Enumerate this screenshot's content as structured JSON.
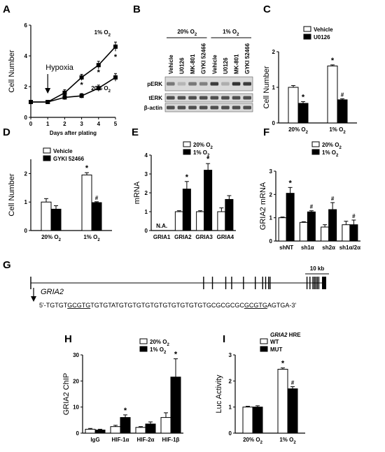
{
  "chart_data": [
    {
      "id": "A",
      "type": "line",
      "panel_label": "A",
      "xlabel": "Days after plating",
      "ylabel": "Cell Number",
      "xlim": [
        0,
        5
      ],
      "ylim": [
        0,
        6
      ],
      "xticks": [
        "0",
        "1",
        "2",
        "3",
        "4",
        "5"
      ],
      "yticks": [
        "0",
        "2",
        "4",
        "6"
      ],
      "annotation": "Hypoxia",
      "annotation_x": 1,
      "series": [
        {
          "name": "1% O2",
          "label_main": "1% O",
          "label_sub": "2",
          "x": [
            0,
            1,
            2,
            3,
            4,
            5
          ],
          "y": [
            1.0,
            1.0,
            1.6,
            2.6,
            3.4,
            4.6
          ],
          "err": [
            0.05,
            0.05,
            0.2,
            0.2,
            0.25,
            0.3
          ],
          "stars": [
            3,
            4,
            5
          ]
        },
        {
          "name": "20% O2",
          "label_main": "20% O",
          "label_sub": "2",
          "x": [
            0,
            1,
            2,
            3,
            4,
            5
          ],
          "y": [
            1.0,
            1.0,
            1.3,
            1.4,
            1.9,
            2.6
          ],
          "err": [
            0.05,
            0.05,
            0.15,
            0.15,
            0.2,
            0.25
          ],
          "stars": []
        }
      ]
    },
    {
      "id": "C",
      "type": "bar",
      "panel_label": "C",
      "ylabel": "Cell Number",
      "ylim": [
        0,
        2
      ],
      "yticks": [
        "0",
        "1",
        "2"
      ],
      "categories": [
        {
          "main": "20% O",
          "sub": "2"
        },
        {
          "main": "1% O",
          "sub": "2"
        }
      ],
      "series": [
        {
          "name": "Vehicle",
          "values": [
            1.0,
            1.6
          ],
          "err": [
            0.05,
            0.03
          ],
          "marks": [
            "",
            "*"
          ]
        },
        {
          "name": "U0126",
          "values": [
            0.55,
            0.65
          ],
          "err": [
            0.05,
            0.03
          ],
          "marks": [
            "*",
            "#"
          ]
        }
      ]
    },
    {
      "id": "D",
      "type": "bar",
      "panel_label": "D",
      "ylabel": "Cell Number",
      "ylim": [
        0,
        2.5
      ],
      "yticks": [
        "0",
        "1",
        "2"
      ],
      "categories": [
        {
          "main": "20% O",
          "sub": "2"
        },
        {
          "main": "1% O",
          "sub": "2"
        }
      ],
      "series": [
        {
          "name": "Vehicle",
          "values": [
            1.0,
            1.95
          ],
          "err": [
            0.12,
            0.08
          ],
          "marks": [
            "",
            "*"
          ]
        },
        {
          "name": "GYKI 52466",
          "values": [
            0.75,
            0.98
          ],
          "err": [
            0.12,
            0.03
          ],
          "marks": [
            "",
            "#"
          ]
        }
      ]
    },
    {
      "id": "E",
      "type": "bar",
      "panel_label": "E",
      "ylabel": "mRNA",
      "ylim": [
        0,
        4
      ],
      "yticks": [
        "0",
        "1",
        "2",
        "3",
        "4"
      ],
      "categories": [
        {
          "main": "GRIA1",
          "sub": ""
        },
        {
          "main": "GRIA2",
          "sub": ""
        },
        {
          "main": "GRIA3",
          "sub": ""
        },
        {
          "main": "GRIA4",
          "sub": ""
        }
      ],
      "na_label": "N.A.",
      "series": [
        {
          "name": "20% O2",
          "label_main": "20% O",
          "label_sub": "2",
          "values": [
            null,
            1.0,
            1.0,
            1.0
          ],
          "err": [
            0,
            0.05,
            0.05,
            0.2
          ],
          "marks": [
            "",
            "",
            "",
            ""
          ]
        },
        {
          "name": "1% O2",
          "label_main": "1% O",
          "label_sub": "2",
          "values": [
            null,
            2.2,
            3.2,
            1.65
          ],
          "err": [
            0,
            0.4,
            0.35,
            0.2
          ],
          "marks": [
            "",
            "*",
            "*",
            ""
          ]
        }
      ]
    },
    {
      "id": "F",
      "type": "bar",
      "panel_label": "F",
      "ylabel": "GRIA2 mRNA",
      "ylim": [
        0,
        3
      ],
      "yticks": [
        "0",
        "1",
        "2",
        "3"
      ],
      "categories": [
        {
          "main": "shNT",
          "sub": ""
        },
        {
          "main": "sh1α",
          "sub": ""
        },
        {
          "main": "sh2α",
          "sub": ""
        },
        {
          "main": "sh1α/2α",
          "sub": ""
        }
      ],
      "series": [
        {
          "name": "20% O2",
          "label_main": "20% O",
          "label_sub": "2",
          "values": [
            1.0,
            0.8,
            0.6,
            0.7
          ],
          "err": [
            0.03,
            0.03,
            0.1,
            0.15
          ],
          "marks": [
            "",
            "",
            "",
            ""
          ]
        },
        {
          "name": "1% O2",
          "label_main": "1% O",
          "label_sub": "2",
          "values": [
            2.05,
            1.25,
            1.35,
            0.7
          ],
          "err": [
            0.25,
            0.05,
            0.3,
            0.2
          ],
          "marks": [
            "*",
            "#",
            "#",
            "#"
          ]
        }
      ]
    },
    {
      "id": "H",
      "type": "bar",
      "panel_label": "H",
      "ylabel": "GRIA2 ChIP",
      "ylim": [
        0,
        30
      ],
      "yticks": [
        "0",
        "10",
        "20",
        "30"
      ],
      "categories": [
        {
          "main": "IgG",
          "sub": ""
        },
        {
          "main": "HIF-1α",
          "sub": ""
        },
        {
          "main": "HIF-2α",
          "sub": ""
        },
        {
          "main": "HIF-1β",
          "sub": ""
        }
      ],
      "series": [
        {
          "name": "20% O2",
          "label_main": "20% O",
          "label_sub": "2",
          "values": [
            1.5,
            2.5,
            2.2,
            6.0
          ],
          "err": [
            0.3,
            0.5,
            0.3,
            1.8
          ],
          "marks": [
            "",
            "",
            "",
            ""
          ]
        },
        {
          "name": "1% O2",
          "label_main": "1% O",
          "label_sub": "2",
          "values": [
            1.2,
            6.0,
            3.5,
            21.5
          ],
          "err": [
            0.3,
            1.0,
            0.8,
            7.0
          ],
          "marks": [
            "",
            "*",
            "",
            "*"
          ]
        }
      ]
    },
    {
      "id": "I",
      "type": "bar",
      "panel_label": "I",
      "ylabel": "Luc Activity",
      "ylim": [
        0,
        3
      ],
      "yticks": [
        "0",
        "1",
        "2",
        "3"
      ],
      "legend_title": "GRIA2 HRE",
      "categories": [
        {
          "main": "20% O",
          "sub": "2"
        },
        {
          "main": "1% O",
          "sub": "2"
        }
      ],
      "series": [
        {
          "name": "WT",
          "values": [
            1.0,
            2.45
          ],
          "err": [
            0.03,
            0.05
          ],
          "marks": [
            "",
            "*"
          ]
        },
        {
          "name": "MUT",
          "values": [
            1.0,
            1.7
          ],
          "err": [
            0.05,
            0.08
          ],
          "marks": [
            "",
            "#"
          ]
        }
      ]
    }
  ],
  "blot": {
    "panel_label": "B",
    "groups": [
      {
        "main": "20% O",
        "sub": "2"
      },
      {
        "main": "1% O",
        "sub": "2"
      }
    ],
    "lanes": [
      "Vehicle",
      "U0126",
      "MK-801",
      "GYKI 52466",
      "Vehicle",
      "U0126",
      "MK-801",
      "GYKI 52466"
    ],
    "rows": [
      "pERK",
      "tERK",
      "β-actin"
    ],
    "perk_intensity": [
      0.55,
      0.2,
      0.55,
      0.5,
      0.9,
      0.25,
      0.95,
      0.9
    ]
  },
  "gene_map": {
    "panel_label": "G",
    "scale_label": "10 kb",
    "gene_name": "GRIA2",
    "seq_prefix": "5'-TGTGT",
    "seq_hre1": "GCGTG",
    "seq_mid": "TGTGTATGTGTGTGTGTGTGTGTGTGTGCGCGCGC",
    "seq_hre2": "GCGTG",
    "seq_suffix": "AGTGA-3'",
    "exons": [
      0.0,
      0.585,
      0.615,
      0.66,
      0.68,
      0.72,
      0.76,
      0.785,
      0.795,
      0.805,
      0.81,
      0.935,
      0.945,
      0.955,
      0.96,
      0.965,
      0.97,
      0.975
    ]
  },
  "colors": {
    "open": "#ffffff",
    "filled": "#000000",
    "gel_bg": "#d9d9d9",
    "band": "#2a2a2a"
  }
}
